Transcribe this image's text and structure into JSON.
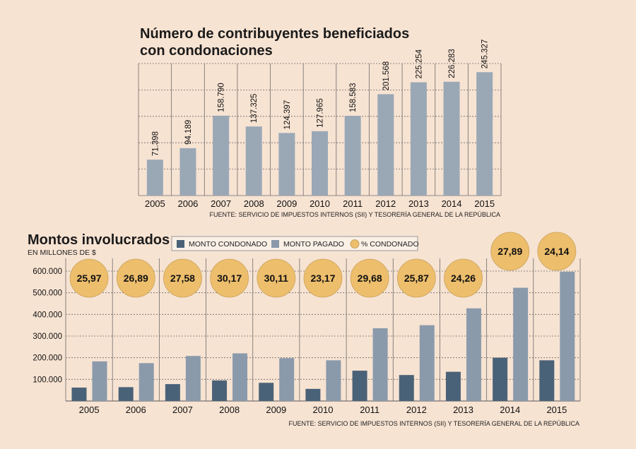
{
  "chart_data": [
    {
      "type": "bar",
      "title": "Número de contribuyentes beneficiados con condonaciones",
      "title_lines": [
        "Número de contribuyentes beneficiados",
        "con condonaciones"
      ],
      "categories": [
        "2005",
        "2006",
        "2007",
        "2008",
        "2009",
        "2010",
        "2011",
        "2012",
        "2013",
        "2014",
        "2015"
      ],
      "values": [
        71398,
        94189,
        158790,
        137325,
        124397,
        127965,
        158583,
        201568,
        225254,
        226283,
        245327
      ],
      "value_labels": [
        "71.398",
        "94.189",
        "158.790",
        "137.325",
        "124.397",
        "127.965",
        "158.583",
        "201.568",
        "225.254",
        "226.283",
        "245.327"
      ],
      "ylim": [
        0,
        262500
      ],
      "grid": true,
      "source": "FUENTE: SERVICIO DE IMPUESTOS INTERNOS (SII) Y TESORERÍA GENERAL DE LA REPÚBLICA",
      "colors": {
        "bar": "#9aa8b6",
        "grid": "#555555"
      }
    },
    {
      "type": "bar",
      "title": "Montos involucrados",
      "subtitle": "EN MILLONES DE $",
      "categories": [
        "2005",
        "2006",
        "2007",
        "2008",
        "2009",
        "2010",
        "2011",
        "2012",
        "2013",
        "2014",
        "2015"
      ],
      "series": [
        {
          "name": "MONTO CONDONADO",
          "values": [
            62000,
            64000,
            78000,
            95000,
            84000,
            56000,
            140000,
            120000,
            135000,
            200000,
            188000
          ],
          "color": "#4a6278"
        },
        {
          "name": "MONTO PAGADO",
          "values": [
            183000,
            175000,
            208000,
            220000,
            198000,
            188000,
            336000,
            350000,
            428000,
            523000,
            597000
          ],
          "color": "#8a9aab"
        }
      ],
      "pct_series": {
        "name": "% CONDONADO",
        "labels": [
          "25,97",
          "26,89",
          "27,58",
          "30,17",
          "30,11",
          "23,17",
          "29,68",
          "25,87",
          "24,26",
          "27,89",
          "24,14"
        ],
        "color": "#edbe6c"
      },
      "yticks": [
        100000,
        200000,
        300000,
        400000,
        500000,
        600000
      ],
      "ytick_labels": [
        "100.000",
        "200.000",
        "300.000",
        "400.000",
        "500.000",
        "600.000"
      ],
      "ylim": [
        0,
        600000
      ],
      "grid": true,
      "legend_position": "top",
      "source": "FUENTE: SERVICIO DE IMPUESTOS INTERNOS (SII) Y TESORERÍA GENERAL DE LA REPÚBLICA"
    }
  ]
}
